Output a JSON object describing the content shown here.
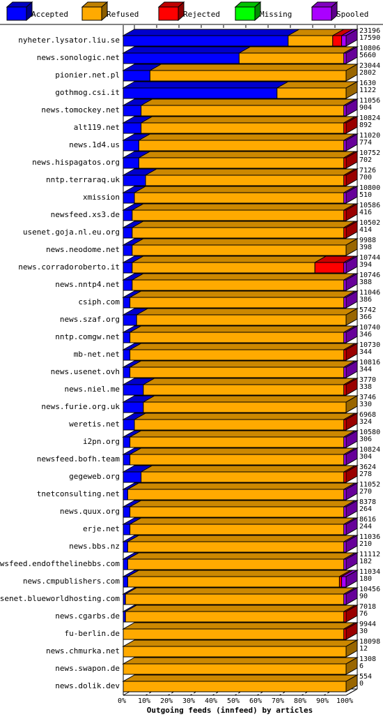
{
  "legend": [
    {
      "key": "accepted",
      "label": "Accepted",
      "color": "#0000ff"
    },
    {
      "key": "refused",
      "label": "Refused",
      "color": "#ffaa00"
    },
    {
      "key": "rejected",
      "label": "Rejected",
      "color": "#ff0000"
    },
    {
      "key": "missing",
      "label": "Missing",
      "color": "#00ff00"
    },
    {
      "key": "spooled",
      "label": "Spooled",
      "color": "#aa00ff"
    }
  ],
  "chart_data": {
    "type": "bar",
    "orientation": "horizontal",
    "stacked": true,
    "xlabel": "Outgoing feeds (innfeed) by articles",
    "x_ticks": [
      "0%",
      "10%",
      "20%",
      "30%",
      "40%",
      "50%",
      "60%",
      "70%",
      "80%",
      "90%",
      "100%"
    ],
    "xlim": [
      0,
      100
    ],
    "grid": true,
    "legend_position": "top",
    "rows": [
      {
        "host": "nyheter.lysator.liu.se",
        "total": "23196",
        "second": "17590",
        "accepted": 74,
        "refused": 20,
        "rejected": 4,
        "missing": 0,
        "spooled": 2
      },
      {
        "host": "news.sonologic.net",
        "total": "10806",
        "second": "5660",
        "accepted": 52,
        "refused": 47,
        "rejected": 0,
        "missing": 0,
        "spooled": 1
      },
      {
        "host": "pionier.net.pl",
        "total": "23044",
        "second": "2802",
        "accepted": 12,
        "refused": 88,
        "rejected": 0,
        "missing": 0,
        "spooled": 0
      },
      {
        "host": "gothmog.csi.it",
        "total": "1630",
        "second": "1122",
        "accepted": 69,
        "refused": 31,
        "rejected": 0,
        "missing": 0,
        "spooled": 0
      },
      {
        "host": "news.tomockey.net",
        "total": "11056",
        "second": "904",
        "accepted": 8,
        "refused": 91,
        "rejected": 0,
        "missing": 0,
        "spooled": 1
      },
      {
        "host": "alt119.net",
        "total": "10824",
        "second": "892",
        "accepted": 8,
        "refused": 91,
        "rejected": 1,
        "missing": 0,
        "spooled": 0
      },
      {
        "host": "news.1d4.us",
        "total": "11020",
        "second": "774",
        "accepted": 7,
        "refused": 92,
        "rejected": 0,
        "missing": 0,
        "spooled": 1
      },
      {
        "host": "news.hispagatos.org",
        "total": "10752",
        "second": "702",
        "accepted": 7,
        "refused": 92,
        "rejected": 1,
        "missing": 0,
        "spooled": 0
      },
      {
        "host": "nntp.terraraq.uk",
        "total": "7126",
        "second": "700",
        "accepted": 10,
        "refused": 89,
        "rejected": 1,
        "missing": 0,
        "spooled": 0
      },
      {
        "host": "xmission",
        "total": "10800",
        "second": "510",
        "accepted": 5,
        "refused": 94,
        "rejected": 0,
        "missing": 0,
        "spooled": 1
      },
      {
        "host": "newsfeed.xs3.de",
        "total": "10586",
        "second": "416",
        "accepted": 4,
        "refused": 95,
        "rejected": 1,
        "missing": 0,
        "spooled": 0
      },
      {
        "host": "usenet.goja.nl.eu.org",
        "total": "10502",
        "second": "414",
        "accepted": 4,
        "refused": 95,
        "rejected": 1,
        "missing": 0,
        "spooled": 0
      },
      {
        "host": "news.neodome.net",
        "total": "9988",
        "second": "398",
        "accepted": 4,
        "refused": 96,
        "rejected": 0,
        "missing": 0,
        "spooled": 0
      },
      {
        "host": "news.corradoroberto.it",
        "total": "10744",
        "second": "394",
        "accepted": 4,
        "refused": 82,
        "rejected": 13,
        "missing": 0,
        "spooled": 1
      },
      {
        "host": "news.nntp4.net",
        "total": "10746",
        "second": "388",
        "accepted": 4,
        "refused": 95,
        "rejected": 0,
        "missing": 0,
        "spooled": 1
      },
      {
        "host": "csiph.com",
        "total": "11046",
        "second": "386",
        "accepted": 3,
        "refused": 96,
        "rejected": 0,
        "missing": 0,
        "spooled": 1
      },
      {
        "host": "news.szaf.org",
        "total": "5742",
        "second": "366",
        "accepted": 6,
        "refused": 94,
        "rejected": 0,
        "missing": 0,
        "spooled": 0
      },
      {
        "host": "nntp.comgw.net",
        "total": "10740",
        "second": "346",
        "accepted": 3,
        "refused": 96,
        "rejected": 0,
        "missing": 0,
        "spooled": 1
      },
      {
        "host": "mb-net.net",
        "total": "10730",
        "second": "344",
        "accepted": 3,
        "refused": 96,
        "rejected": 1,
        "missing": 0,
        "spooled": 0
      },
      {
        "host": "news.usenet.ovh",
        "total": "10816",
        "second": "344",
        "accepted": 3,
        "refused": 96,
        "rejected": 0,
        "missing": 0,
        "spooled": 1
      },
      {
        "host": "news.niel.me",
        "total": "3770",
        "second": "338",
        "accepted": 9,
        "refused": 90,
        "rejected": 1,
        "missing": 0,
        "spooled": 0
      },
      {
        "host": "news.furie.org.uk",
        "total": "3746",
        "second": "330",
        "accepted": 9,
        "refused": 91,
        "rejected": 0,
        "missing": 0,
        "spooled": 0
      },
      {
        "host": "weretis.net",
        "total": "6968",
        "second": "324",
        "accepted": 5,
        "refused": 94,
        "rejected": 1,
        "missing": 0,
        "spooled": 0
      },
      {
        "host": "i2pn.org",
        "total": "10580",
        "second": "306",
        "accepted": 3,
        "refused": 96,
        "rejected": 0,
        "missing": 0,
        "spooled": 1
      },
      {
        "host": "newsfeed.bofh.team",
        "total": "10824",
        "second": "304",
        "accepted": 3,
        "refused": 96,
        "rejected": 0,
        "missing": 0,
        "spooled": 1
      },
      {
        "host": "gegeweb.org",
        "total": "3624",
        "second": "278",
        "accepted": 8,
        "refused": 91,
        "rejected": 1,
        "missing": 0,
        "spooled": 0
      },
      {
        "host": "tnetconsulting.net",
        "total": "11052",
        "second": "270",
        "accepted": 2,
        "refused": 97,
        "rejected": 0,
        "missing": 0,
        "spooled": 1
      },
      {
        "host": "news.quux.org",
        "total": "8378",
        "second": "264",
        "accepted": 3,
        "refused": 96,
        "rejected": 0,
        "missing": 0,
        "spooled": 1
      },
      {
        "host": "erje.net",
        "total": "8616",
        "second": "244",
        "accepted": 3,
        "refused": 96,
        "rejected": 0,
        "missing": 0,
        "spooled": 1
      },
      {
        "host": "news.bbs.nz",
        "total": "11036",
        "second": "210",
        "accepted": 2,
        "refused": 97,
        "rejected": 0,
        "missing": 0,
        "spooled": 1
      },
      {
        "host": "newsfeed.endofthelinebbs.com",
        "total": "11112",
        "second": "182",
        "accepted": 2,
        "refused": 97,
        "rejected": 0,
        "missing": 0,
        "spooled": 1
      },
      {
        "host": "news.cmpublishers.com",
        "total": "11034",
        "second": "180",
        "accepted": 2,
        "refused": 95,
        "rejected": 1,
        "missing": 0,
        "spooled": 2
      },
      {
        "host": "usenet.blueworldhosting.com",
        "total": "10456",
        "second": "90",
        "accepted": 1,
        "refused": 98,
        "rejected": 0,
        "missing": 0,
        "spooled": 1
      },
      {
        "host": "news.cgarbs.de",
        "total": "7018",
        "second": "76",
        "accepted": 1,
        "refused": 98,
        "rejected": 1,
        "missing": 0,
        "spooled": 0
      },
      {
        "host": "fu-berlin.de",
        "total": "9944",
        "second": "30",
        "accepted": 0,
        "refused": 99,
        "rejected": 1,
        "missing": 0,
        "spooled": 0
      },
      {
        "host": "news.chmurka.net",
        "total": "18098",
        "second": "12",
        "accepted": 0,
        "refused": 100,
        "rejected": 0,
        "missing": 0,
        "spooled": 0
      },
      {
        "host": "news.swapon.de",
        "total": "1308",
        "second": "6",
        "accepted": 0,
        "refused": 100,
        "rejected": 0,
        "missing": 0,
        "spooled": 0
      },
      {
        "host": "news.dolik.dev",
        "total": "554",
        "second": "0",
        "accepted": 0,
        "refused": 100,
        "rejected": 0,
        "missing": 0,
        "spooled": 0
      }
    ]
  }
}
